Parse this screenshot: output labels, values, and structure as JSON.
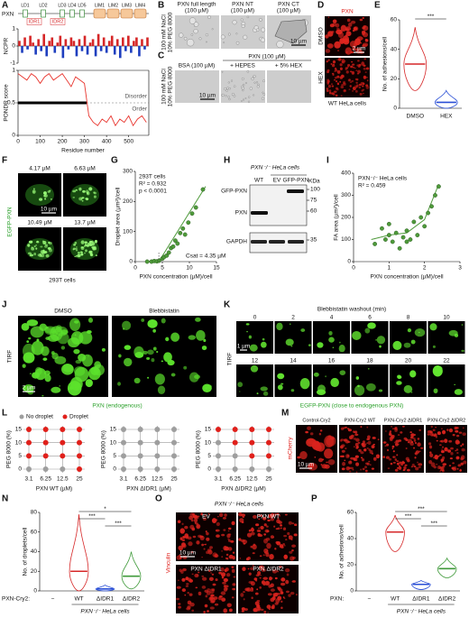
{
  "panels": {
    "A": {
      "letter": "A",
      "protein": "PXN",
      "domains": [
        "LD1",
        "LD2",
        "LD3",
        "LD4",
        "LD5",
        "LIM1",
        "LIM2",
        "LIM3",
        "LIM4"
      ],
      "idrs": [
        "IDR1",
        "IDR2"
      ],
      "ncpr": {
        "type": "bar",
        "ylabel": "NCPR",
        "ylim": [
          -1,
          1
        ],
        "yticks": [
          -1,
          0,
          1
        ],
        "colors": {
          "positive": "#d62728",
          "negative": "#1f3fbf"
        },
        "values": [
          0.3,
          -0.4,
          0.5,
          -0.2,
          0.6,
          0.2,
          -0.5,
          0.4,
          -0.3,
          0.7,
          -0.6,
          0.3,
          0.5,
          -0.4,
          0.2,
          0.6,
          -0.7,
          0.4,
          -0.2,
          0.5,
          0.3,
          -0.6,
          0.4,
          -0.3,
          0.6,
          -0.5,
          0.2,
          0.4,
          -0.6,
          0.7,
          -0.3,
          0.5,
          -0.4,
          0.3,
          0.6,
          -0.5,
          0.4,
          -0.7,
          0.5,
          -0.3,
          0.6,
          -0.4,
          0.3,
          0.5,
          -0.6,
          0.4,
          -0.2,
          0.5
        ]
      },
      "pondr": {
        "type": "line",
        "ylabel": "PONDR score",
        "xlabel": "Residue number",
        "xlim": [
          0,
          591
        ],
        "xticks": [
          0,
          100,
          200,
          300,
          400,
          500
        ],
        "ylim": [
          0,
          1
        ],
        "yticks": [
          0,
          0.5,
          1
        ],
        "threshold": 0.5,
        "disorder_region": [
          0,
          310
        ],
        "labels": [
          "Disorder",
          "Order"
        ],
        "color": "#e8352e",
        "x": [
          0,
          20,
          40,
          60,
          80,
          100,
          120,
          140,
          160,
          180,
          200,
          220,
          240,
          260,
          280,
          300,
          320,
          340,
          360,
          380,
          400,
          420,
          440,
          460,
          480,
          500,
          520,
          540,
          560,
          580
        ],
        "values": [
          0.95,
          0.9,
          0.85,
          0.95,
          0.9,
          0.8,
          0.9,
          0.95,
          0.85,
          0.9,
          0.95,
          0.85,
          0.75,
          0.9,
          0.85,
          0.8,
          0.3,
          0.2,
          0.15,
          0.25,
          0.2,
          0.3,
          0.15,
          0.25,
          0.2,
          0.3,
          0.15,
          0.25,
          0.3,
          0.2
        ]
      }
    },
    "B": {
      "letter": "B",
      "columns": [
        [
          "PXN full length",
          "(100 µM)"
        ],
        [
          "PXN NT",
          "(100 µM)"
        ],
        [
          "PXN CT",
          "(100 µM)"
        ]
      ],
      "row_label": [
        "100 mM NaCl",
        "10% PEG 8000"
      ],
      "scale": "10 µm"
    },
    "C": {
      "letter": "C",
      "header": "PXN (100 µM)",
      "columns": [
        "BSA (100 µM)",
        "+ HEPES",
        "+ 5% HEX"
      ],
      "row_label": [
        "100 mM NaCl",
        "10% PEG 8000"
      ],
      "scale": "10 µm"
    },
    "D": {
      "letter": "D",
      "stain": "PXN",
      "rows": [
        "DMSO",
        "HEX"
      ],
      "scale": "2 µm",
      "caption": "WT HeLa cells"
    },
    "E": {
      "letter": "E",
      "type": "violin",
      "ylabel": "No. of adhesions/cell",
      "categories": [
        "DMSO",
        "HEX"
      ],
      "medians": [
        30,
        4
      ],
      "ranges": [
        [
          12,
          55
        ],
        [
          0,
          12
        ]
      ],
      "colors": [
        "#d62728",
        "#2a4fd6"
      ],
      "ylim": [
        0,
        60
      ],
      "yticks": [
        0,
        20,
        40,
        60
      ],
      "comparisons": [
        {
          "pair": [
            0,
            1
          ],
          "label": "***"
        }
      ]
    },
    "F": {
      "letter": "F",
      "concentrations": [
        "4.17 µM",
        "6.63 µM",
        "10.49 µM",
        "13.7 µM"
      ],
      "stain": "EGFP-PXN",
      "scale": "10 µm",
      "caption": "293T cells"
    },
    "G": {
      "letter": "G",
      "type": "scatter",
      "notes": [
        "293T cells",
        "R² = 0.932",
        "p < 0.0001"
      ],
      "csat_label": "Csat = 4.35 µM",
      "csat": 4.35,
      "xlabel": "PXN concentration (µM)/cell",
      "ylabel": "Droplet area (µm²)/cell",
      "color": "#4e9a3a",
      "xlim": [
        0,
        15
      ],
      "xticks": [
        0,
        5,
        10,
        15
      ],
      "ylim": [
        0,
        300
      ],
      "yticks": [
        0,
        100,
        200,
        300
      ],
      "x": [
        2.2,
        3,
        3.5,
        4,
        4.4,
        5,
        5.3,
        5.8,
        6.2,
        6.6,
        7,
        7.4,
        7.8,
        8.3,
        8.8,
        9.2,
        9.8,
        10.5,
        11.2,
        12.5
      ],
      "values": [
        0,
        0,
        2,
        1,
        3,
        10,
        15,
        20,
        30,
        45,
        50,
        70,
        60,
        95,
        110,
        90,
        130,
        160,
        180,
        240
      ],
      "fit": {
        "x": [
          4.35,
          13
        ],
        "values": [
          0,
          250
        ]
      }
    },
    "H": {
      "letter": "H",
      "cells": "PXN⁻/⁻ HeLa cells",
      "lanes": [
        "WT",
        "EV",
        "GFP-PXN"
      ],
      "bands": [
        "GFP-PXN",
        "PXN",
        "GAPDH"
      ],
      "unit": "KDa",
      "markers": [
        100,
        75,
        60,
        35
      ]
    },
    "I": {
      "letter": "I",
      "type": "scatter",
      "notes": [
        "PXN⁻/⁻ HeLa cells",
        "R² = 0.459"
      ],
      "xlabel": "PXN concentration (µM)/cell",
      "ylabel": "FA area (µm²)/cell",
      "color": "#4e9a3a",
      "xlim": [
        0,
        3
      ],
      "xticks": [
        0,
        1,
        2,
        3
      ],
      "ylim": [
        0,
        400
      ],
      "yticks": [
        0,
        100,
        200,
        300,
        400
      ],
      "x": [
        0.6,
        0.8,
        0.9,
        1.0,
        1.1,
        1.2,
        1.3,
        1.4,
        1.5,
        1.6,
        1.7,
        1.8,
        1.9,
        2.0,
        2.1,
        2.2,
        2.3,
        2.4,
        1.0,
        1.5
      ],
      "values": [
        80,
        150,
        100,
        120,
        90,
        130,
        60,
        110,
        140,
        100,
        180,
        120,
        200,
        160,
        220,
        250,
        300,
        340,
        170,
        90
      ],
      "fit": {
        "x": [
          0.5,
          1,
          1.5,
          2,
          2.4
        ],
        "values": [
          100,
          120,
          130,
          190,
          350
        ]
      }
    },
    "J": {
      "letter": "J",
      "columns": [
        "DMSO",
        "Blebbistatin"
      ],
      "mode": "TIRF",
      "scale": "2 µm",
      "caption": "PXN (endogenous)"
    },
    "K": {
      "letter": "K",
      "header": "Blebbistatin washout (min)",
      "times": [
        0,
        2,
        4,
        6,
        8,
        10,
        12,
        14,
        16,
        18,
        20,
        22
      ],
      "mode": "TIRF",
      "scale": "1 µm",
      "caption": "EGFP-PXN (close to endogenous PXN)"
    },
    "L": {
      "letter": "L",
      "legend": [
        {
          "name": "No droplet",
          "color": "#9e9e9e"
        },
        {
          "name": "Droplet",
          "color": "#e0201b"
        }
      ],
      "ylabel": "PEG 8000 (%)",
      "yticks": [
        0,
        5,
        10,
        15
      ],
      "xticks": [
        3.1,
        6.25,
        12.5,
        25
      ],
      "plots": [
        {
          "xlabel": "PXN WT (µM)",
          "droplet": [
            [
              0,
              0,
              0,
              1
            ],
            [
              1,
              1,
              1,
              1
            ],
            [
              1,
              1,
              1,
              1
            ],
            [
              1,
              1,
              1,
              1
            ]
          ]
        },
        {
          "xlabel": "PXN ΔIDR1 (µM)",
          "droplet": [
            [
              0,
              0,
              0,
              0
            ],
            [
              0,
              0,
              0,
              0
            ],
            [
              0,
              0,
              0,
              0
            ],
            [
              0,
              0,
              0,
              0
            ]
          ]
        },
        {
          "xlabel": "PXN ΔIDR2 (µM)",
          "droplet": [
            [
              0,
              0,
              0,
              0
            ],
            [
              0,
              0,
              1,
              1
            ],
            [
              0,
              1,
              1,
              1
            ],
            [
              1,
              1,
              1,
              1
            ]
          ]
        }
      ]
    },
    "M": {
      "letter": "M",
      "stain": "mCherry",
      "columns": [
        "Control-Cry2",
        "PXN-Cry2 WT",
        "PXN-Cry2 ΔIDR1",
        "PXN-Cry2 ΔIDR2"
      ],
      "scale": "10 µm"
    },
    "N": {
      "letter": "N",
      "type": "violin",
      "ylabel": "No. of droplets/cell",
      "row_label": "PXN-Cry2:",
      "caption": "PXN⁻/⁻ HeLa cells",
      "categories": [
        "−",
        "WT",
        "ΔIDR1",
        "ΔIDR2"
      ],
      "medians": [
        null,
        20,
        2,
        15
      ],
      "ranges": [
        null,
        [
          0,
          78
        ],
        [
          0,
          6
        ],
        [
          2,
          40
        ]
      ],
      "colors": [
        null,
        "#d62728",
        "#2a4fd6",
        "#3f9a3a"
      ],
      "ylim": [
        0,
        80
      ],
      "yticks": [
        0,
        20,
        40,
        60,
        80
      ],
      "comparisons": [
        {
          "pair": [
            1,
            3
          ],
          "label": "*"
        },
        {
          "pair": [
            1,
            2
          ],
          "label": "***"
        },
        {
          "pair": [
            2,
            3
          ],
          "label": "***"
        }
      ]
    },
    "O": {
      "letter": "O",
      "cells": "PXN⁻/⁻ HeLa cells",
      "columns": [
        "EV",
        "PXN WT",
        "PXN ΔIDR1",
        "PXN ΔIDR2"
      ],
      "stain": "Vinculin",
      "scale": "10 µm"
    },
    "P": {
      "letter": "P",
      "type": "violin",
      "ylabel": "No. of adhesions/cell",
      "row_label": "PXN:",
      "caption": "PXN⁻/⁻ HeLa cells",
      "categories": [
        "−",
        "WT",
        "ΔIDR1",
        "ΔIDR2"
      ],
      "medians": [
        null,
        45,
        5,
        17
      ],
      "ranges": [
        null,
        [
          30,
          58
        ],
        [
          1,
          8
        ],
        [
          10,
          25
        ]
      ],
      "colors": [
        null,
        "#d62728",
        "#2a4fd6",
        "#3f9a3a"
      ],
      "ylim": [
        0,
        60
      ],
      "yticks": [
        0,
        20,
        40,
        60
      ],
      "comparisons": [
        {
          "pair": [
            1,
            3
          ],
          "label": "***"
        },
        {
          "pair": [
            1,
            2
          ],
          "label": "***"
        },
        {
          "pair": [
            2,
            3
          ],
          "label": "***"
        }
      ]
    }
  }
}
